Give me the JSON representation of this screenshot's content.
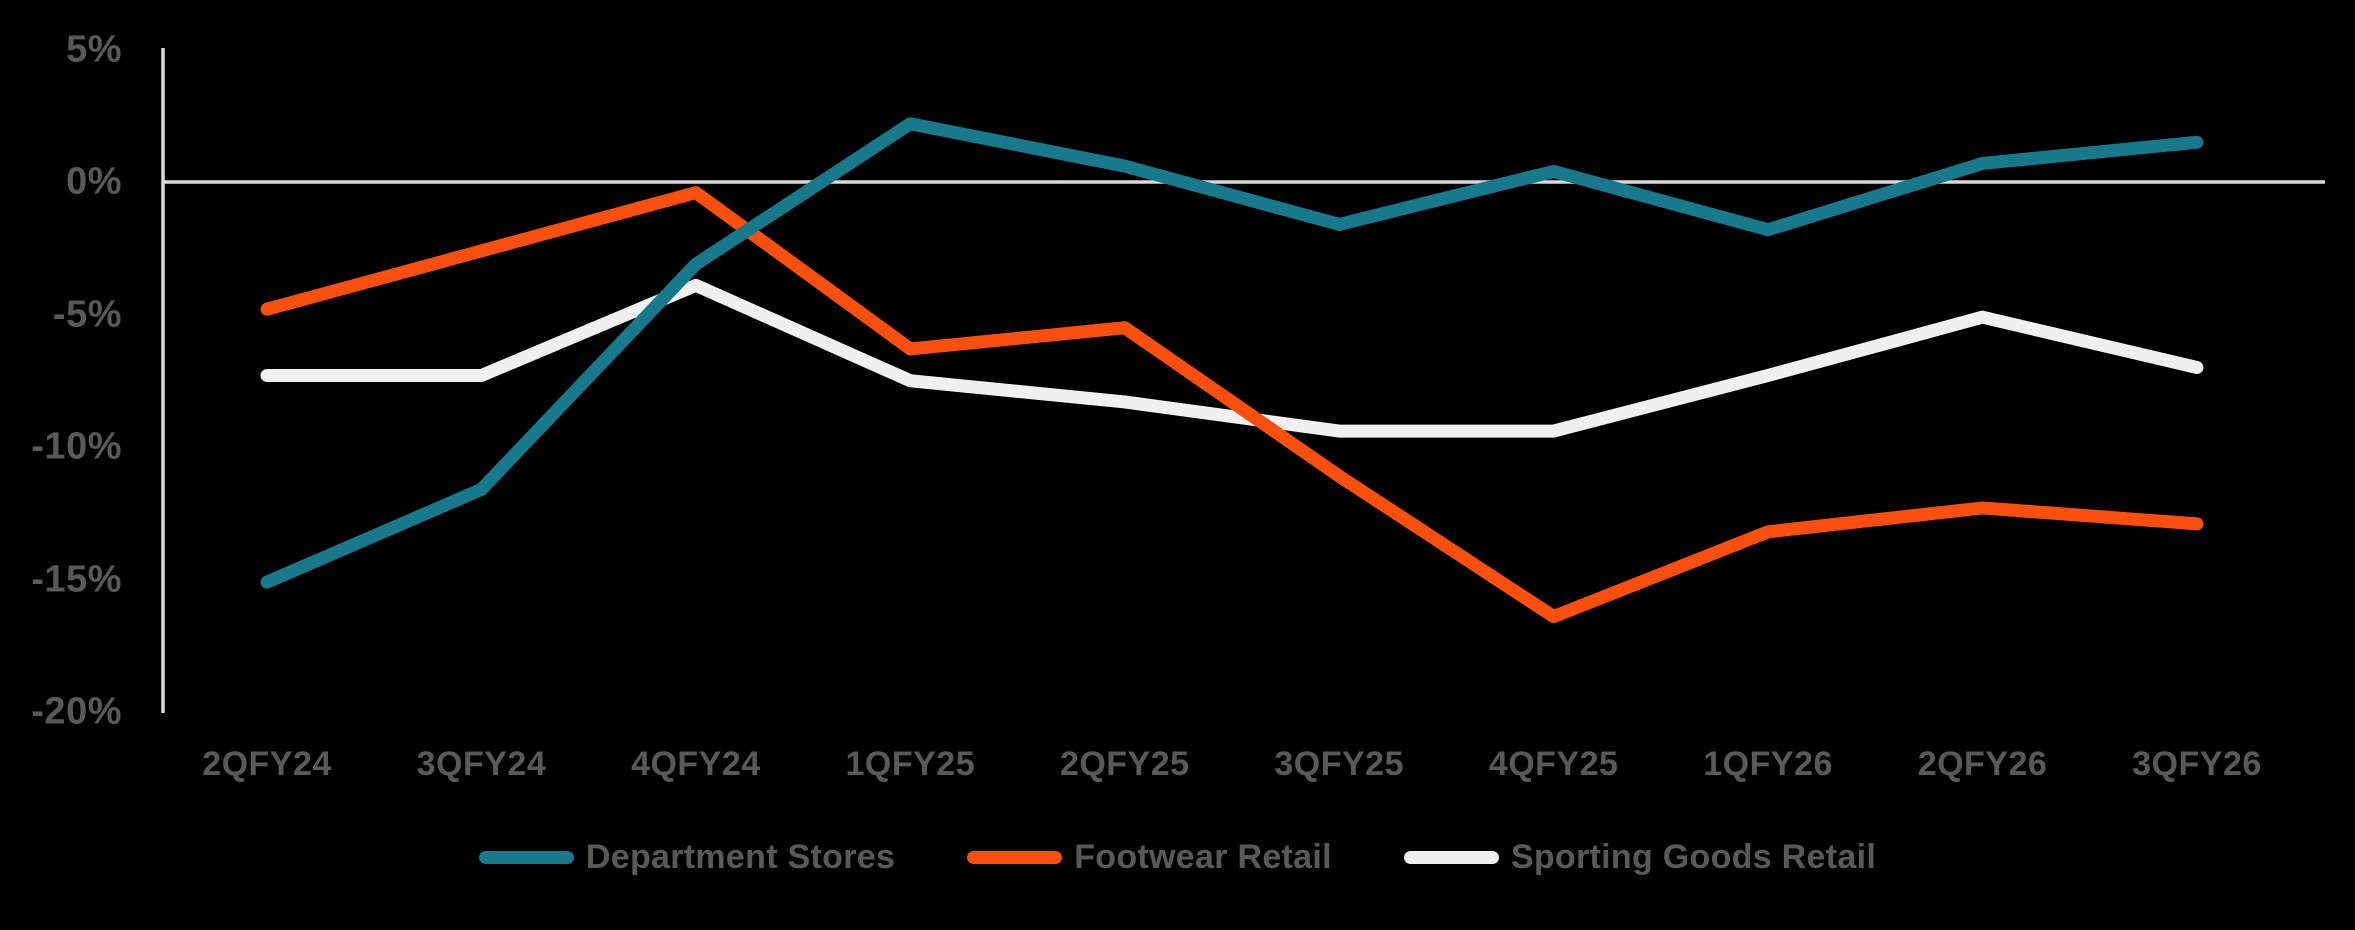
{
  "chart_data": {
    "type": "line",
    "title": "",
    "categories": [
      "2QFY24",
      "3QFY24",
      "4QFY24",
      "1QFY25",
      "2QFY25",
      "3QFY25",
      "4QFY25",
      "1QFY26",
      "2QFY26",
      "3QFY26"
    ],
    "series": [
      {
        "name": "Department Stores",
        "color": "#17798C",
        "values": [
          -15.1,
          -11.6,
          -3.1,
          2.2,
          0.6,
          -1.6,
          0.4,
          -1.8,
          0.7,
          1.5
        ]
      },
      {
        "name": "Footwear Retail",
        "color": "#FB4F0E",
        "values": [
          -4.8,
          -2.6,
          -0.4,
          -6.3,
          -5.5,
          -11.1,
          -16.4,
          -13.2,
          -12.3,
          -12.9
        ]
      },
      {
        "name": "Sporting Goods Retail",
        "color": "#F0F0F0",
        "values": [
          -7.3,
          -7.3,
          -3.9,
          -7.5,
          -8.3,
          -9.4,
          -9.4,
          -7.3,
          -5.1,
          -7.0
        ]
      }
    ],
    "y_axis": {
      "unit": "%",
      "min": -20,
      "max": 5,
      "ticks": [
        "5%",
        "0%",
        "-5%",
        "-10%",
        "-15%",
        "-20%"
      ],
      "tick_values": [
        5,
        0,
        -5,
        -10,
        -15,
        -20
      ]
    },
    "zero_line_value": 0,
    "grid": "zero-line-only",
    "legend_position": "bottom-center",
    "colors": {
      "background": "#000000",
      "axis_line": "#D9D9D9",
      "zero_line": "#D9D9D9",
      "tick_label": "#595959",
      "legend_label": "#595959"
    }
  }
}
